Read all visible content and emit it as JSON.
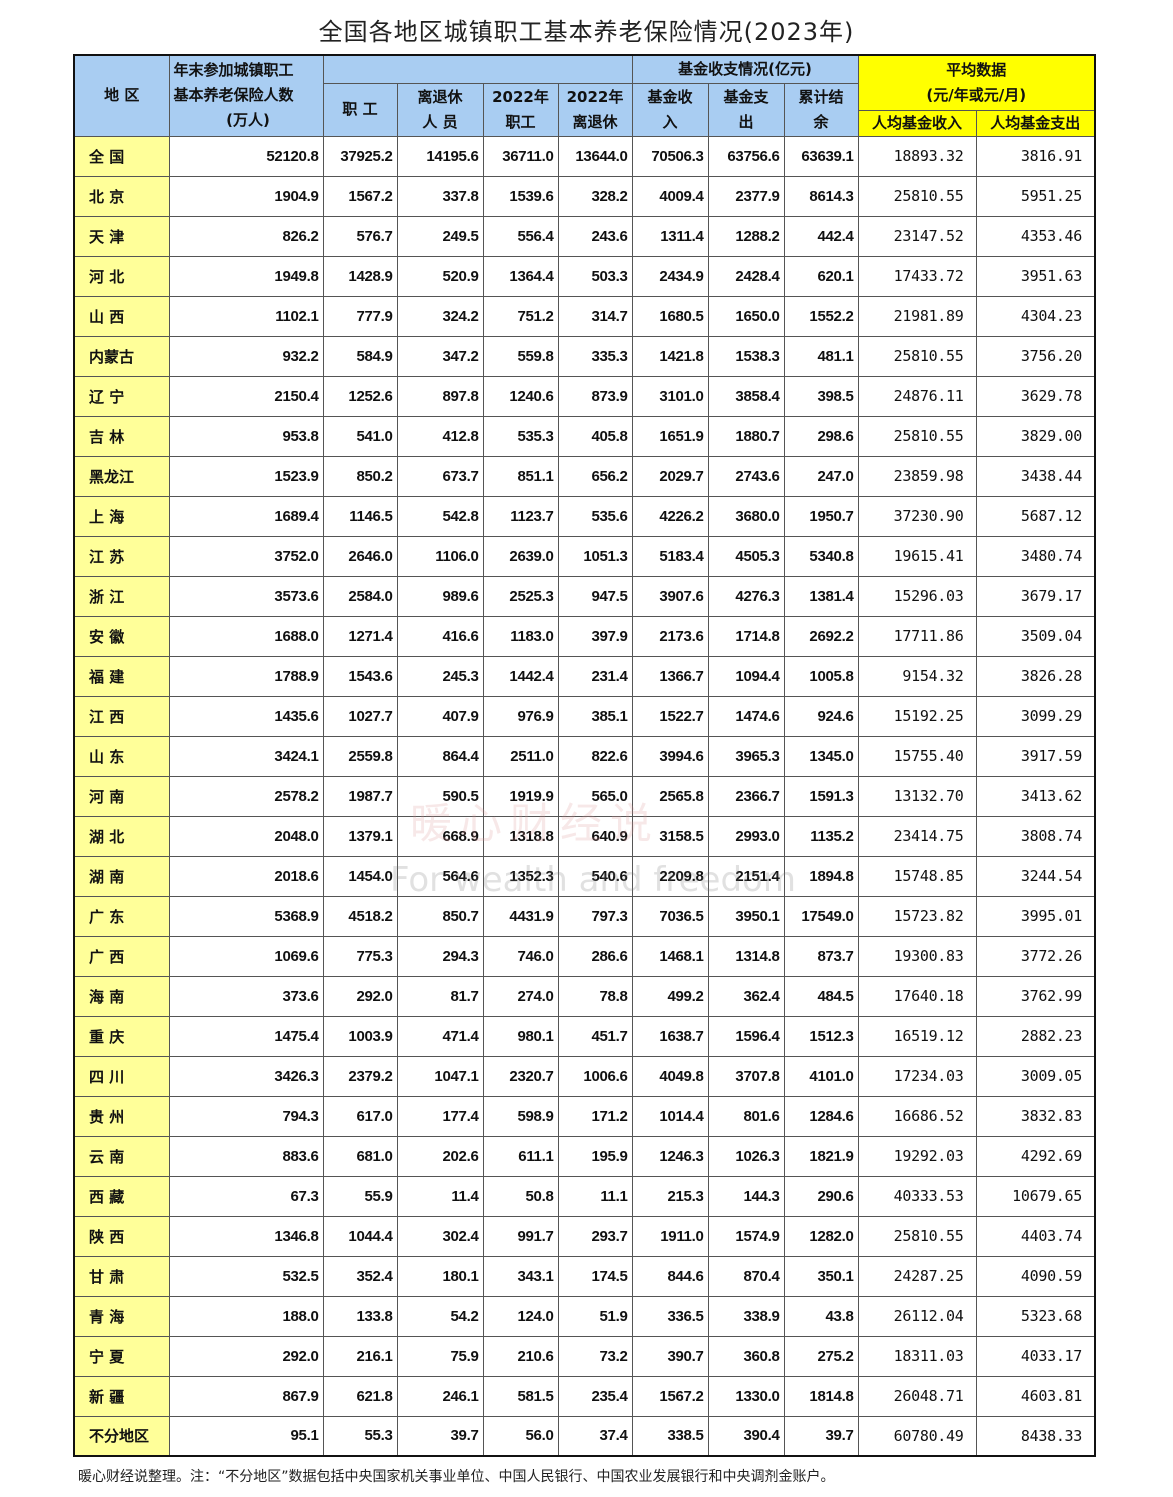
{
  "title": "全国各地区城镇职工基本养老保险情况(2023年)",
  "header": {
    "region": "地  区",
    "insured_line1": "年末参加城镇职工",
    "insured_line2": "基本养老保险人数",
    "insured_line3": "(万人)",
    "workers": "职 工",
    "retirees_line1": "离退休",
    "retirees_line2": "人  员",
    "workers_2022_line1": "2022年",
    "workers_2022_line2": "职工",
    "retirees_2022_line1": "2022年",
    "retirees_2022_line2": "离退休",
    "fund_group": "基金收支情况(亿元)",
    "fund_income_line1": "基金收",
    "fund_income_line2": "入",
    "fund_expense_line1": "基金支",
    "fund_expense_line2": "出",
    "fund_balance_line1": "累计结",
    "fund_balance_line2": "余",
    "avg_group_line1": "平均数据",
    "avg_group_line2": "(元/年或元/月)",
    "avg_income": "人均基金收入",
    "avg_expense": "人均基金支出"
  },
  "colors": {
    "header_blue": "#a9cdf2",
    "region_yellow": "#ffff99",
    "avg_yellow": "#ffff00"
  },
  "table": {
    "rows": [
      {
        "region": "全  国",
        "values": [
          "52120.8",
          "37925.2",
          "14195.6",
          "36711.0",
          "13644.0",
          "70506.3",
          "63756.6",
          "63639.1",
          "18893.32",
          "3816.91"
        ]
      },
      {
        "region": "北  京",
        "values": [
          "1904.9",
          "1567.2",
          "337.8",
          "1539.6",
          "328.2",
          "4009.4",
          "2377.9",
          "8614.3",
          "25810.55",
          "5951.25"
        ]
      },
      {
        "region": "天  津",
        "values": [
          "826.2",
          "576.7",
          "249.5",
          "556.4",
          "243.6",
          "1311.4",
          "1288.2",
          "442.4",
          "23147.52",
          "4353.46"
        ]
      },
      {
        "region": "河  北",
        "values": [
          "1949.8",
          "1428.9",
          "520.9",
          "1364.4",
          "503.3",
          "2434.9",
          "2428.4",
          "620.1",
          "17433.72",
          "3951.63"
        ]
      },
      {
        "region": "山  西",
        "values": [
          "1102.1",
          "777.9",
          "324.2",
          "751.2",
          "314.7",
          "1680.5",
          "1650.0",
          "1552.2",
          "21981.89",
          "4304.23"
        ]
      },
      {
        "region": "内蒙古",
        "values": [
          "932.2",
          "584.9",
          "347.2",
          "559.8",
          "335.3",
          "1421.8",
          "1538.3",
          "481.1",
          "25810.55",
          "3756.20"
        ]
      },
      {
        "region": "辽  宁",
        "values": [
          "2150.4",
          "1252.6",
          "897.8",
          "1240.6",
          "873.9",
          "3101.0",
          "3858.4",
          "398.5",
          "24876.11",
          "3629.78"
        ]
      },
      {
        "region": "吉  林",
        "values": [
          "953.8",
          "541.0",
          "412.8",
          "535.3",
          "405.8",
          "1651.9",
          "1880.7",
          "298.6",
          "25810.55",
          "3829.00"
        ]
      },
      {
        "region": "黑龙江",
        "values": [
          "1523.9",
          "850.2",
          "673.7",
          "851.1",
          "656.2",
          "2029.7",
          "2743.6",
          "247.0",
          "23859.98",
          "3438.44"
        ]
      },
      {
        "region": "上  海",
        "values": [
          "1689.4",
          "1146.5",
          "542.8",
          "1123.7",
          "535.6",
          "4226.2",
          "3680.0",
          "1950.7",
          "37230.90",
          "5687.12"
        ]
      },
      {
        "region": "江  苏",
        "values": [
          "3752.0",
          "2646.0",
          "1106.0",
          "2639.0",
          "1051.3",
          "5183.4",
          "4505.3",
          "5340.8",
          "19615.41",
          "3480.74"
        ]
      },
      {
        "region": "浙  江",
        "values": [
          "3573.6",
          "2584.0",
          "989.6",
          "2525.3",
          "947.5",
          "3907.6",
          "4276.3",
          "1381.4",
          "15296.03",
          "3679.17"
        ]
      },
      {
        "region": "安  徽",
        "values": [
          "1688.0",
          "1271.4",
          "416.6",
          "1183.0",
          "397.9",
          "2173.6",
          "1714.8",
          "2692.2",
          "17711.86",
          "3509.04"
        ]
      },
      {
        "region": "福  建",
        "values": [
          "1788.9",
          "1543.6",
          "245.3",
          "1442.4",
          "231.4",
          "1366.7",
          "1094.4",
          "1005.8",
          "9154.32",
          "3826.28"
        ]
      },
      {
        "region": "江  西",
        "values": [
          "1435.6",
          "1027.7",
          "407.9",
          "976.9",
          "385.1",
          "1522.7",
          "1474.6",
          "924.6",
          "15192.25",
          "3099.29"
        ]
      },
      {
        "region": "山  东",
        "values": [
          "3424.1",
          "2559.8",
          "864.4",
          "2511.0",
          "822.6",
          "3994.6",
          "3965.3",
          "1345.0",
          "15755.40",
          "3917.59"
        ]
      },
      {
        "region": "河  南",
        "values": [
          "2578.2",
          "1987.7",
          "590.5",
          "1919.9",
          "565.0",
          "2565.8",
          "2366.7",
          "1591.3",
          "13132.70",
          "3413.62"
        ]
      },
      {
        "region": "湖  北",
        "values": [
          "2048.0",
          "1379.1",
          "668.9",
          "1318.8",
          "640.9",
          "3158.5",
          "2993.0",
          "1135.2",
          "23414.75",
          "3808.74"
        ]
      },
      {
        "region": "湖  南",
        "values": [
          "2018.6",
          "1454.0",
          "564.6",
          "1352.3",
          "540.6",
          "2209.8",
          "2151.4",
          "1894.8",
          "15748.85",
          "3244.54"
        ]
      },
      {
        "region": "广  东",
        "values": [
          "5368.9",
          "4518.2",
          "850.7",
          "4431.9",
          "797.3",
          "7036.5",
          "3950.1",
          "17549.0",
          "15723.82",
          "3995.01"
        ]
      },
      {
        "region": "广  西",
        "values": [
          "1069.6",
          "775.3",
          "294.3",
          "746.0",
          "286.6",
          "1468.1",
          "1314.8",
          "873.7",
          "19300.83",
          "3772.26"
        ]
      },
      {
        "region": "海  南",
        "values": [
          "373.6",
          "292.0",
          "81.7",
          "274.0",
          "78.8",
          "499.2",
          "362.4",
          "484.5",
          "17640.18",
          "3762.99"
        ]
      },
      {
        "region": "重  庆",
        "values": [
          "1475.4",
          "1003.9",
          "471.4",
          "980.1",
          "451.7",
          "1638.7",
          "1596.4",
          "1512.3",
          "16519.12",
          "2882.23"
        ]
      },
      {
        "region": "四  川",
        "values": [
          "3426.3",
          "2379.2",
          "1047.1",
          "2320.7",
          "1006.6",
          "4049.8",
          "3707.8",
          "4101.0",
          "17234.03",
          "3009.05"
        ]
      },
      {
        "region": "贵  州",
        "values": [
          "794.3",
          "617.0",
          "177.4",
          "598.9",
          "171.2",
          "1014.4",
          "801.6",
          "1284.6",
          "16686.52",
          "3832.83"
        ]
      },
      {
        "region": "云  南",
        "values": [
          "883.6",
          "681.0",
          "202.6",
          "611.1",
          "195.9",
          "1246.3",
          "1026.3",
          "1821.9",
          "19292.03",
          "4292.69"
        ]
      },
      {
        "region": "西  藏",
        "values": [
          "67.3",
          "55.9",
          "11.4",
          "50.8",
          "11.1",
          "215.3",
          "144.3",
          "290.6",
          "40333.53",
          "10679.65"
        ]
      },
      {
        "region": "陕  西",
        "values": [
          "1346.8",
          "1044.4",
          "302.4",
          "991.7",
          "293.7",
          "1911.0",
          "1574.9",
          "1282.0",
          "25810.55",
          "4403.74"
        ]
      },
      {
        "region": "甘  肃",
        "values": [
          "532.5",
          "352.4",
          "180.1",
          "343.1",
          "174.5",
          "844.6",
          "870.4",
          "350.1",
          "24287.25",
          "4090.59"
        ]
      },
      {
        "region": "青  海",
        "values": [
          "188.0",
          "133.8",
          "54.2",
          "124.0",
          "51.9",
          "336.5",
          "338.9",
          "43.8",
          "26112.04",
          "5323.68"
        ]
      },
      {
        "region": "宁  夏",
        "values": [
          "292.0",
          "216.1",
          "75.9",
          "210.6",
          "73.2",
          "390.7",
          "360.8",
          "275.2",
          "18311.03",
          "4033.17"
        ]
      },
      {
        "region": "新  疆",
        "values": [
          "867.9",
          "621.8",
          "246.1",
          "581.5",
          "235.4",
          "1567.2",
          "1330.0",
          "1814.8",
          "26048.71",
          "4603.81"
        ]
      },
      {
        "region": "不分地区",
        "values": [
          "95.1",
          "55.3",
          "39.7",
          "56.0",
          "37.4",
          "338.5",
          "390.4",
          "39.7",
          "60780.49",
          "8438.33"
        ]
      }
    ]
  },
  "note": "暖心财经说整理。注：“不分地区”数据包括中央国家机关事业单位、中国人民银行、中国农业发展银行和中央调剂金账户。",
  "watermark": {
    "text": "暖心财经说",
    "slogan": "For wealth and freedom"
  }
}
